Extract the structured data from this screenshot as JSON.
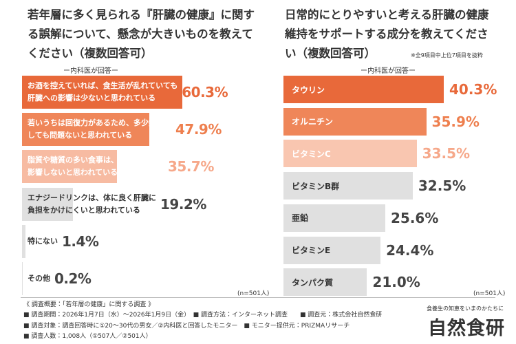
{
  "chart_data": [
    {
      "type": "bar",
      "orientation": "horizontal",
      "title": "若年層に多く見られる『肝臓の健康』に関する誤解について、懸念が大きいものを教えてください（複数回答可）",
      "subtitle": "ー内科医が回答ー",
      "categories": [
        "お酒を控えていれば、食生活が乱れていても\n肝臓への影響は少ないと思われている",
        "若いうちは回復力があるため、多少無理を\nしても問題ないと思われている",
        "脂質や糖質の多い食事は、肝臓にあまり\n影響しないと思われている",
        "エナジードリンクは、体に良く肝臓に\n負担をかけにくいと思われている",
        "特にない",
        "その他"
      ],
      "values": [
        60.3,
        47.9,
        35.7,
        19.2,
        1.4,
        0.2
      ],
      "value_labels": [
        "60.3%",
        "47.9%",
        "35.7%",
        "19.2%",
        "1.4%",
        "0.2%"
      ],
      "colors": [
        "#e8693a",
        "#ef8659",
        "#f7bba2",
        "#e0e0e0",
        "#e0e0e0",
        "#e0e0e0"
      ],
      "label_colors": [
        "#ffffff",
        "#ffffff",
        "#ffffff",
        "#333333",
        "#333333",
        "#333333"
      ],
      "value_colors": [
        "#e8693a",
        "#ee7f4e",
        "#f6a88a",
        "#444444",
        "#444444",
        "#444444"
      ],
      "n_label": "(n=501人)"
    },
    {
      "type": "bar",
      "orientation": "horizontal",
      "title": "日常的にとりやすいと考える肝臓の健康維持をサポートする成分を教えてください（複数回答可）",
      "note": "※全9項目中上位7項目を抜粋",
      "subtitle": "ー内科医が回答ー",
      "categories": [
        "タウリン",
        "オルニチン",
        "ビタミンC",
        "ビタミンB群",
        "亜鉛",
        "ビタミンE",
        "タンパク質"
      ],
      "values": [
        40.3,
        35.9,
        33.5,
        32.5,
        25.6,
        24.4,
        21.0
      ],
      "value_labels": [
        "40.3%",
        "35.9%",
        "33.5%",
        "32.5%",
        "25.6%",
        "24.4%",
        "21.0%"
      ],
      "colors": [
        "#e8693a",
        "#ef8659",
        "#f9c6b0",
        "#e0e0e0",
        "#e0e0e0",
        "#e0e0e0",
        "#e0e0e0"
      ],
      "label_colors": [
        "#ffffff",
        "#ffffff",
        "#ffffff",
        "#333333",
        "#333333",
        "#333333",
        "#333333"
      ],
      "value_colors": [
        "#e8693a",
        "#ee7f4e",
        "#f6a88a",
        "#444444",
        "#444444",
        "#444444",
        "#444444"
      ],
      "n_label": "(n=501人)"
    }
  ],
  "survey": {
    "heading": "《 調査概要：「若年層の健康」に関する調査 》",
    "lines": [
      "■ 調査期間：2026年1月7日（水）〜2026年1月9日（金）　■ 調査方法：インターネット調査　　■ 調査元：株式会社自然食研",
      "■ 調査対象：調査回答時に①20〜30代の男女／②内科医と回答したモニター　■ モニター提供元：PRIZMAリサーチ",
      "■ 調査人数：1,008人（①507人／②501人）"
    ]
  },
  "brand": {
    "tagline": "食養生の知恵をいまのかたちに",
    "name": "自然食研"
  }
}
